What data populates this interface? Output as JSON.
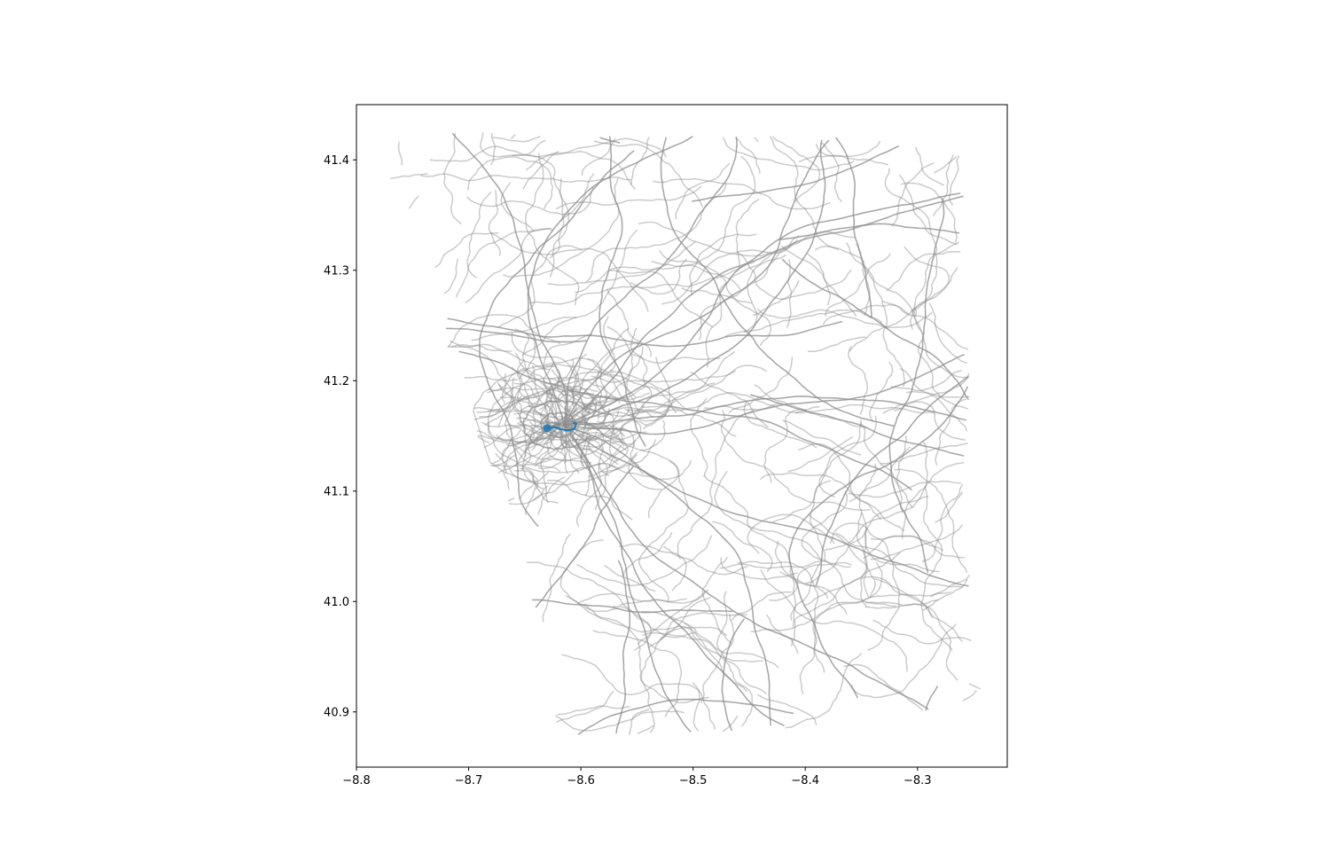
{
  "chart_data": {
    "type": "map",
    "title": "",
    "xlabel": "",
    "ylabel": "",
    "xlim": [
      -8.8,
      -8.22
    ],
    "ylim": [
      40.85,
      41.45
    ],
    "xticks": [
      -8.8,
      -8.7,
      -8.6,
      -8.5,
      -8.4,
      -8.3
    ],
    "xtick_labels": [
      "−8.8",
      "−8.7",
      "−8.6",
      "−8.5",
      "−8.4",
      "−8.3"
    ],
    "yticks": [
      40.9,
      41.0,
      41.1,
      41.2,
      41.3,
      41.4
    ],
    "ytick_labels": [
      "40.9",
      "41.0",
      "41.1",
      "41.2",
      "41.3",
      "41.4"
    ],
    "grid": false,
    "layers": {
      "road_network": {
        "color": "#8c8c8c",
        "style": "gray lines, semi-transparent"
      },
      "route": {
        "color": "#1f77b4",
        "start_point": [
          -8.63,
          41.157
        ],
        "path": [
          [
            -8.63,
            41.157
          ],
          [
            -8.624,
            41.158
          ],
          [
            -8.618,
            41.156
          ],
          [
            -8.612,
            41.155
          ],
          [
            -8.606,
            41.156
          ],
          [
            -8.604,
            41.161
          ],
          [
            -8.607,
            41.162
          ]
        ]
      }
    }
  }
}
